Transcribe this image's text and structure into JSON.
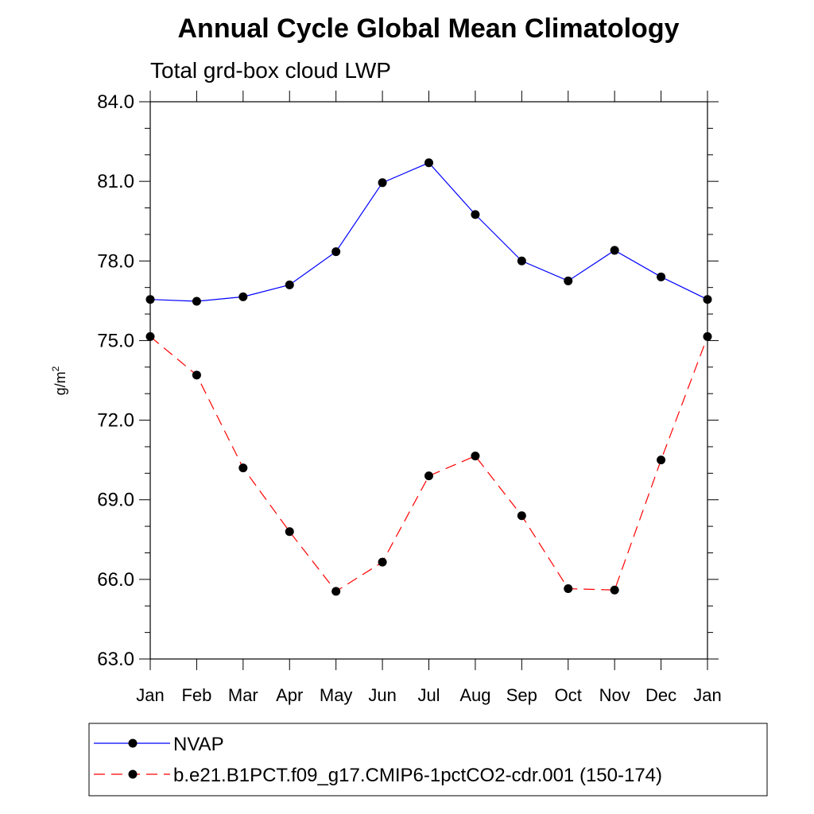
{
  "chart_data": {
    "type": "line",
    "title": "Annual Cycle Global Mean Climatology",
    "subtitle": "Total grd-box cloud LWP",
    "ylabel": "g/m",
    "ylabel_sup": "2",
    "ylim": [
      63.0,
      84.0
    ],
    "yticks": [
      "63.0",
      "66.0",
      "69.0",
      "72.0",
      "75.0",
      "78.0",
      "81.0",
      "84.0"
    ],
    "categories": [
      "Jan",
      "Feb",
      "Mar",
      "Apr",
      "May",
      "Jun",
      "Jul",
      "Aug",
      "Sep",
      "Oct",
      "Nov",
      "Dec",
      "Jan"
    ],
    "series": [
      {
        "name": "NVAP",
        "color": "#0000ff",
        "dash": "solid",
        "values": [
          76.55,
          76.48,
          76.65,
          77.1,
          78.35,
          80.95,
          81.7,
          79.75,
          78.0,
          77.25,
          78.4,
          77.4,
          76.55
        ]
      },
      {
        "name": "b.e21.B1PCT.f09_g17.CMIP6-1pctCO2-cdr.001 (150-174)",
        "color": "#ff0000",
        "dash": "dashed",
        "values": [
          75.15,
          73.7,
          70.2,
          67.8,
          65.55,
          66.65,
          69.9,
          70.65,
          68.4,
          65.65,
          65.6,
          70.5,
          75.15
        ]
      }
    ],
    "grid": false,
    "legend_placement": "bottom"
  }
}
